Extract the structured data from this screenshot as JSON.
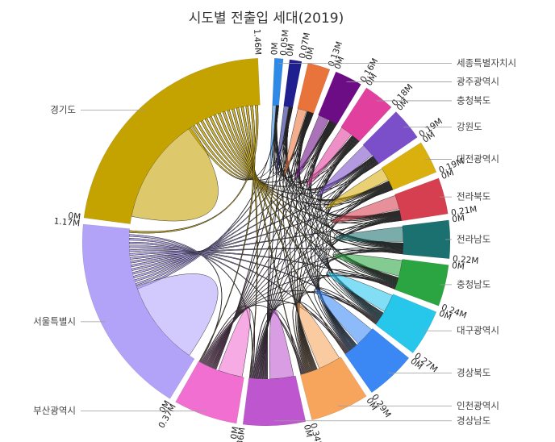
{
  "chart_data": {
    "type": "chord",
    "title": "시도별 전출입 세대(2019)",
    "unit": "M",
    "regions": [
      {
        "name": "세종특별자치시",
        "total": 0.05,
        "color": "#2e8ae6",
        "ticks": [
          "0M",
          "0.05M"
        ]
      },
      {
        "name": "",
        "total": 0.07,
        "color": "#1f1f8f",
        "ticks": [
          "0M",
          "0.07M"
        ]
      },
      {
        "name": "",
        "total": 0.13,
        "color": "#e8743b",
        "ticks": [
          "0M",
          "0.13M"
        ]
      },
      {
        "name": "광주광역시",
        "total": 0.16,
        "color": "#6c0d86",
        "ticks": [
          "0M",
          "0.16M"
        ]
      },
      {
        "name": "충청북도",
        "total": 0.18,
        "color": "#e2409f",
        "ticks": [
          "0M",
          "0.18M"
        ]
      },
      {
        "name": "강원도",
        "total": 0.19,
        "color": "#7a4fc9",
        "ticks": [
          "0M",
          "0.19M"
        ]
      },
      {
        "name": "대전광역시",
        "total": 0.19,
        "color": "#d9b00d",
        "ticks": [
          "0M",
          "0.19M"
        ]
      },
      {
        "name": "전라북도",
        "total": 0.21,
        "color": "#d63f4f",
        "ticks": [
          "0M",
          "0.21M"
        ]
      },
      {
        "name": "전라남도",
        "total": 0.22,
        "color": "#1b7070",
        "ticks": [
          "0M",
          "0.22M"
        ]
      },
      {
        "name": "충청남도",
        "total": 0.24,
        "color": "#2aa541",
        "ticks": [
          "0M",
          "0.24M"
        ]
      },
      {
        "name": "대구광역시",
        "total": 0.27,
        "color": "#27c7ec",
        "ticks": [
          "0M",
          "0.27M"
        ]
      },
      {
        "name": "경상북도",
        "total": 0.29,
        "color": "#3b88f5",
        "ticks": [
          "0M",
          "0.29M"
        ]
      },
      {
        "name": "인천광역시",
        "total": 0.34,
        "color": "#f7a55c",
        "ticks": [
          "0M",
          "0.34M"
        ]
      },
      {
        "name": "경상남도",
        "total": 0.36,
        "color": "#be57cf",
        "ticks": [
          "0M",
          "0.36M"
        ]
      },
      {
        "name": "부산광역시",
        "total": 0.37,
        "color": "#f06fd0",
        "ticks": [
          "0M",
          "0.37M"
        ]
      },
      {
        "name": "서울특별시",
        "total": 1.17,
        "color": "#b2a3f9",
        "ticks": [
          "0M",
          "1.17M"
        ]
      },
      {
        "name": "경기도",
        "total": 1.46,
        "color": "#c4a200",
        "ticks": [
          "0M",
          "1.46M"
        ]
      }
    ]
  }
}
